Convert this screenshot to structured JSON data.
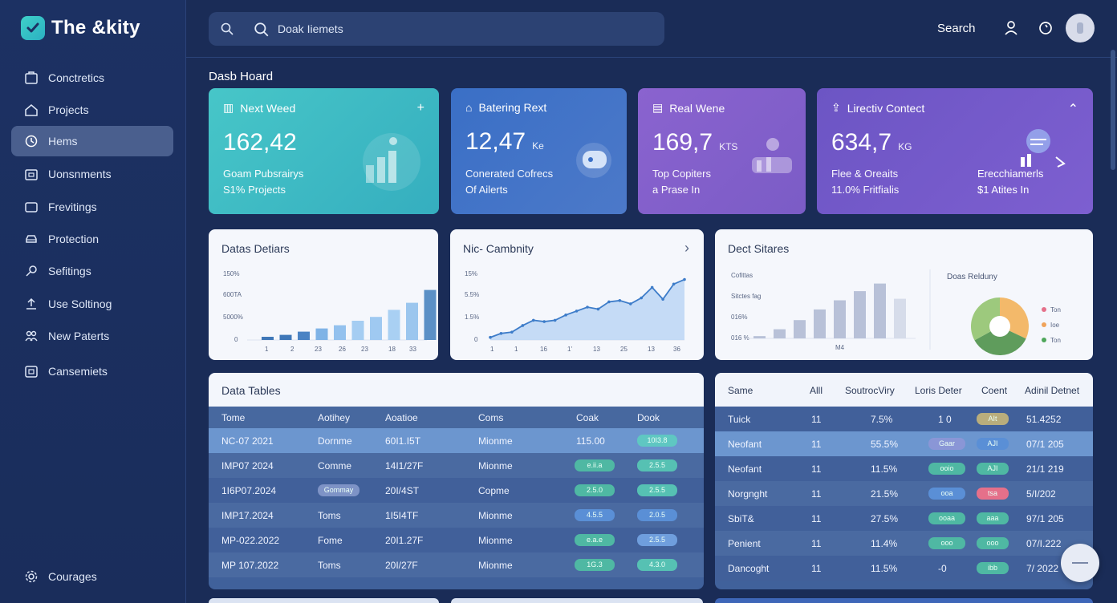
{
  "app": {
    "title": "The &kity"
  },
  "sidebar": {
    "items": [
      {
        "label": "Conctretics",
        "icon": "box-icon"
      },
      {
        "label": "Projects",
        "icon": "home-icon"
      },
      {
        "label": "Hems",
        "icon": "gear-icon",
        "active": true
      },
      {
        "label": "Uonsnments",
        "icon": "briefcase-icon"
      },
      {
        "label": "Frevitings",
        "icon": "folder-icon"
      },
      {
        "label": "Protection",
        "icon": "car-icon"
      },
      {
        "label": "Sefitings",
        "icon": "key-icon"
      },
      {
        "label": "Use Soltinog",
        "icon": "upload-icon"
      },
      {
        "label": "New Paterts",
        "icon": "users-icon"
      },
      {
        "label": "Cansemiets",
        "icon": "calendar-icon"
      }
    ],
    "footer": {
      "label": "Courages",
      "icon": "settings-icon"
    }
  },
  "header": {
    "search_placeholder": "Doak Iiemets",
    "search_label": "Search"
  },
  "page_title": "Dasb Hoard",
  "kpis": [
    {
      "title": "Next Weed",
      "value": "162,42",
      "unit": "",
      "sub1": "Goam Pubsrairys",
      "sub2": "S1% Projects",
      "action": "+"
    },
    {
      "title": "Batering Rext",
      "value": "12,47",
      "unit": "Ke",
      "sub1": "Conerated Cofrecs",
      "sub2": "Of Ailerts"
    },
    {
      "title": "Real Wene",
      "value": "169,7",
      "unit": "KTS",
      "sub1": "Top Copiters",
      "sub2": "a Prase In"
    },
    {
      "title": "Lirectiv Contect",
      "value": "634,7",
      "unit": "KG",
      "sub1": "Flee & Oreaits",
      "sub2": "11.0% Fritfialis",
      "sub3": "Erecchiamerls",
      "sub4": "$1 Atites In",
      "action": "⌃"
    }
  ],
  "charts": {
    "data_detiars": {
      "title": "Datas Detiars",
      "ticks_y": [
        "150%",
        "600TA",
        "5000%",
        "0"
      ],
      "ticks_x": [
        "1",
        "2",
        "23",
        "26",
        "23",
        "18",
        "33"
      ]
    },
    "nic_cambnity": {
      "title": "Nic- Cambnity",
      "ticks_y": [
        "15%",
        "5.5%",
        "1.5%",
        "0"
      ],
      "ticks_x": [
        "1",
        "1",
        "16",
        "1'",
        "13",
        "25",
        "13",
        "36"
      ],
      "action": "›"
    },
    "dect_sitares": {
      "title": "Dect Sitares",
      "ticks_y": [
        "Cofittas",
        "Sitctes fag",
        "016%",
        "016 %"
      ],
      "tick_x": "M4",
      "pie_title": "Doas Relduny",
      "legend": [
        "Ton",
        "Ioe",
        "Ton"
      ]
    }
  },
  "chart_data": [
    {
      "type": "bar",
      "title": "Datas Detiars",
      "values": [
        5,
        8,
        13,
        18,
        23,
        30,
        36,
        47,
        58,
        78
      ],
      "ylim": [
        0,
        100
      ]
    },
    {
      "type": "area",
      "title": "Nic- Cambnity",
      "values": [
        4,
        10,
        12,
        22,
        30,
        28,
        30,
        38,
        44,
        50,
        47,
        58,
        60,
        55,
        64,
        80,
        62,
        85,
        92
      ],
      "ylim": [
        0,
        100
      ]
    },
    {
      "type": "bar",
      "title": "Dect Sitares",
      "values": [
        3,
        12,
        24,
        38,
        50,
        62,
        72,
        52
      ],
      "ylim": [
        0,
        80
      ]
    },
    {
      "type": "pie",
      "title": "Doas Relduny",
      "values": [
        32,
        35,
        33
      ],
      "colors": [
        "#f3b96a",
        "#5f9c5c",
        "#9dc97d"
      ]
    }
  ],
  "data_table": {
    "title": "Data Tables",
    "columns": [
      "Tome",
      "Aotihey",
      "Aoatioe",
      "Coms",
      "Coak",
      "Dook"
    ],
    "rows": [
      {
        "c1": "NC-07 2021",
        "c2": "Dornme",
        "c3": "60I1.I5T",
        "c4": "Mionme",
        "c5": "115.00",
        "c6": "10I3.8",
        "selected": true
      },
      {
        "c1": "IMP07 2024",
        "c2": "Comme",
        "c3": "14I1/27F",
        "c4": "Mionme",
        "c5": "e.ii.a",
        "c6": "2.5.5"
      },
      {
        "c1": "1I6P07.2024",
        "c2": "Gommay",
        "c3": "20I/4ST",
        "c4": "Copme",
        "c5": "2.5.0",
        "c6": "2.5.5"
      },
      {
        "c1": "IMP17.2024",
        "c2": "Toms",
        "c3": "1I5I4TF",
        "c4": "Mionme",
        "c5": "4.5.5",
        "c6": "2.0.5"
      },
      {
        "c1": "MP-022.2022",
        "c2": "Fome",
        "c3": "20I1.27F",
        "c4": "Mionme",
        "c5": "e.a.e",
        "c6": "2.5.5"
      },
      {
        "c1": "MP 107.2022",
        "c2": "Toms",
        "c3": "20I/27F",
        "c4": "Mionme",
        "c5": "1G.3",
        "c6": "4.3.0"
      }
    ]
  },
  "side_table": {
    "columns": [
      "Same",
      "Alll",
      "SoutrocViry",
      "Loris Deter",
      "Coent",
      "Adinil Detnet"
    ],
    "rows": [
      {
        "c1": "Tuick",
        "c2": "11",
        "c3": "7.5%",
        "c4": "1 0",
        "b1": "",
        "b2": "AIt",
        "c6": "51.4252"
      },
      {
        "c1": "Neofant",
        "c2": "11",
        "c3": "55.5%",
        "c4": "",
        "b1": "Gaar",
        "b2": "AJI",
        "c6": "07/1 205",
        "selected": true
      },
      {
        "c1": "Neofant",
        "c2": "11",
        "c3": "11.5%",
        "c4": "",
        "b1": "ooio",
        "b2": "AJI",
        "c6": "21/1 219"
      },
      {
        "c1": "Norgnght",
        "c2": "11",
        "c3": "21.5%",
        "c4": "",
        "b1": "ooa",
        "b2": "tsa",
        "c6": "5/I/202"
      },
      {
        "c1": "SbiT&",
        "c2": "11",
        "c3": "27.5%",
        "c4": "",
        "b1": "ooaa",
        "b2": "aaa",
        "c6": "97/1 205"
      },
      {
        "c1": "Penient",
        "c2": "11",
        "c3": "11.4%",
        "c4": "",
        "b1": "ooo",
        "b2": "ooo",
        "c6": "07/I.222"
      },
      {
        "c1": "Dancoght",
        "c2": "11",
        "c3": "11.5%",
        "c4": "-0",
        "b1": "",
        "b2": "ibb",
        "c6": "7/ 2022"
      }
    ]
  }
}
